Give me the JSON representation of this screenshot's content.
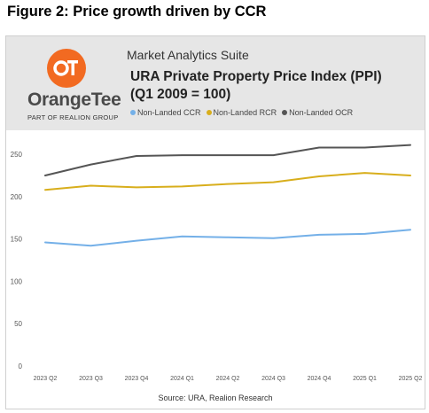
{
  "figure_title": "Figure 2: Price growth driven by CCR",
  "header": {
    "suite_name": "Market Analytics Suite",
    "brand_name": "OrangeTee",
    "brand_tagline": "PART OF REALION GROUP"
  },
  "source_note": "Source: URA, Realion Research",
  "colors": {
    "Non-Landed CCR": "#74b0e8",
    "Non-Landed RCR": "#d8ae1c",
    "Non-Landed OCR": "#555555",
    "brand_orange": "#f26a21"
  },
  "chart_data": {
    "type": "line",
    "title": "URA Private Property Price Index (PPI)",
    "subtitle": "(Q1 2009 = 100)",
    "xlabel": "",
    "ylabel": "",
    "categories": [
      "2023 Q2",
      "2023 Q3",
      "2023 Q4",
      "2024 Q1",
      "2024 Q2",
      "2024 Q3",
      "2024 Q4",
      "2025 Q1",
      "2025 Q2"
    ],
    "series": [
      {
        "name": "Non-Landed CCR",
        "values": [
          146,
          142,
          148,
          153,
          152,
          151,
          155,
          156,
          161
        ]
      },
      {
        "name": "Non-Landed RCR",
        "values": [
          208,
          213,
          211,
          212,
          215,
          217,
          224,
          228,
          225
        ]
      },
      {
        "name": "Non-Landed OCR",
        "values": [
          225,
          238,
          248,
          249,
          249,
          249,
          258,
          258,
          261
        ]
      }
    ],
    "yticks": [
      0,
      50,
      100,
      150,
      200,
      250
    ],
    "ylim": [
      0,
      270
    ],
    "grid": false,
    "legend_position": "top-left"
  }
}
